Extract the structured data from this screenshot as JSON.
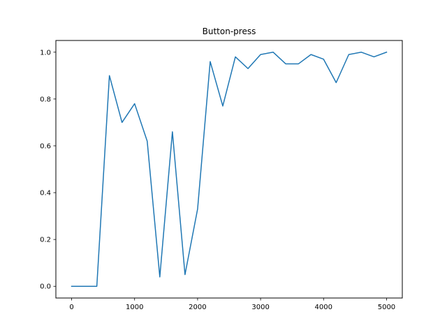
{
  "chart_data": {
    "type": "line",
    "title": "Button-press",
    "xlabel": "",
    "ylabel": "",
    "xlim": [
      -250,
      5250
    ],
    "ylim": [
      -0.05,
      1.05
    ],
    "x_ticks": [
      0,
      1000,
      2000,
      3000,
      4000,
      5000
    ],
    "y_ticks": [
      0.0,
      0.2,
      0.4,
      0.6,
      0.8,
      1.0
    ],
    "x_tick_labels": [
      "0",
      "1000",
      "2000",
      "3000",
      "4000",
      "5000"
    ],
    "y_tick_labels": [
      "0.0",
      "0.2",
      "0.4",
      "0.6",
      "0.8",
      "1.0"
    ],
    "grid": false,
    "legend": "none",
    "series": [
      {
        "color": "#1f77b4",
        "x": [
          0,
          200,
          400,
          600,
          800,
          1000,
          1200,
          1400,
          1600,
          1800,
          2000,
          2200,
          2400,
          2600,
          2800,
          3000,
          3200,
          3400,
          3600,
          3800,
          4000,
          4200,
          4400,
          4600,
          4800,
          5000
        ],
        "y": [
          0.0,
          0.0,
          0.0,
          0.9,
          0.7,
          0.78,
          0.62,
          0.04,
          0.66,
          0.05,
          0.33,
          0.96,
          0.77,
          0.98,
          0.93,
          0.99,
          1.0,
          0.95,
          0.95,
          0.99,
          0.97,
          0.87,
          0.99,
          1.0,
          0.98,
          1.0
        ]
      }
    ]
  }
}
